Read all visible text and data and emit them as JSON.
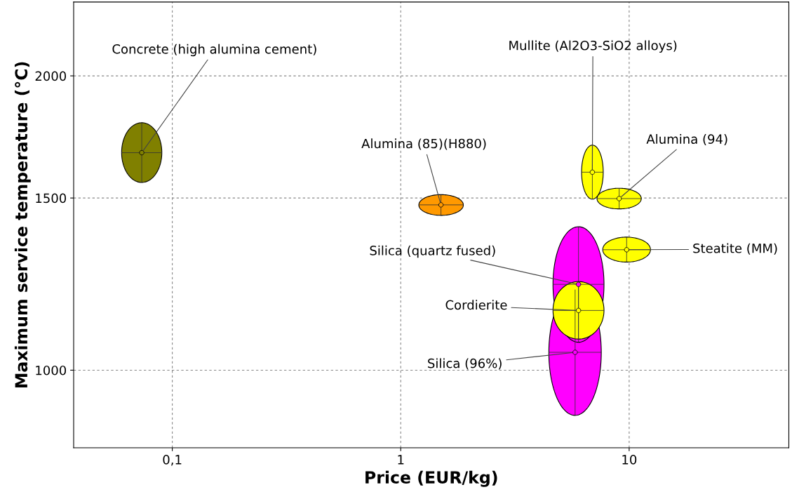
{
  "chart_data": {
    "type": "scatter",
    "xlabel": "Price (EUR/kg)",
    "ylabel": "Maximum service temperature (°C)",
    "log": "xy",
    "grid": true,
    "xlim": [
      0.037,
      50
    ],
    "ylim": [
      833,
      2380
    ],
    "xticks": [
      {
        "value": 0.1,
        "label": "0,1"
      },
      1,
      10
    ],
    "yticks": [
      1000,
      1500,
      2000
    ],
    "series": [
      {
        "name": "Concrete (high alumina cement)",
        "color": "#808000",
        "x": [
          0.0735
        ],
        "values": [
          1669
        ],
        "xerrors": [
          [
            0.06,
            0.09
          ]
        ],
        "errors": [
          [
            1556,
            1791
          ]
        ]
      },
      {
        "name": "Mullite (Al2O3-SiO2 alloys)",
        "color": "#ffff00",
        "x": [
          6.9
        ],
        "values": [
          1594
        ],
        "xerrors": [
          [
            6.19,
            7.7
          ]
        ],
        "errors": [
          [
            1496,
            1699
          ]
        ]
      },
      {
        "name": "Alumina (85)(H880)",
        "color": "#ff9900",
        "x": [
          1.5
        ],
        "values": [
          1476
        ],
        "xerrors": [
          [
            1.2,
            1.88
          ]
        ],
        "errors": [
          [
            1440,
            1512
          ]
        ]
      },
      {
        "name": "Alumina (94)",
        "color": "#ffff00",
        "x": [
          9.04
        ],
        "values": [
          1498
        ],
        "xerrors": [
          [
            7.23,
            11.3
          ]
        ],
        "errors": [
          [
            1462,
            1535
          ]
        ]
      },
      {
        "name": "Steatite (MM)",
        "color": "#ffff00",
        "x": [
          9.75
        ],
        "values": [
          1328
        ],
        "xerrors": [
          [
            7.66,
            12.4
          ]
        ],
        "errors": [
          [
            1290,
            1368
          ]
        ]
      },
      {
        "name": "Silica (96%)",
        "color": "#ff00ff",
        "x": [
          5.8
        ],
        "values": [
          1043
        ],
        "xerrors": [
          [
            4.45,
            7.55
          ]
        ],
        "errors": [
          [
            899,
            1209
          ]
        ]
      },
      {
        "name": "Silica (quartz fused)",
        "color": "#ff00ff",
        "x": [
          6.0
        ],
        "values": [
          1224
        ],
        "xerrors": [
          [
            4.64,
            7.76
          ]
        ],
        "errors": [
          [
            1068,
            1402
          ]
        ]
      },
      {
        "name": "Cordierite",
        "color": "#ffff00",
        "x": [
          6.0
        ],
        "values": [
          1151
        ],
        "xerrors": [
          [
            4.64,
            7.76
          ]
        ],
        "errors": [
          [
            1076,
            1232
          ]
        ]
      }
    ]
  }
}
